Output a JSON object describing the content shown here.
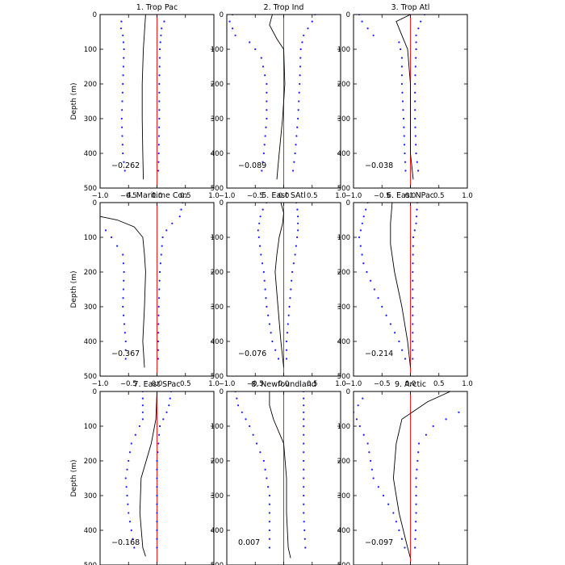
{
  "chart_data": {
    "type": "line",
    "layout": "3x3 grid of vertical profile panels",
    "ylabel": "Depth (m)",
    "xlim": [
      -1.0,
      1.0
    ],
    "ylim": [
      500,
      0
    ],
    "xticks": [
      -1.0,
      -0.5,
      0.0,
      0.5,
      1.0
    ],
    "xtick_labels": [
      "−1.0",
      "−0.5",
      "0.0",
      "0.5",
      "1.0"
    ],
    "yticks": [
      0,
      100,
      200,
      300,
      400,
      500
    ],
    "ytick_labels": [
      "0",
      "100",
      "200",
      "300",
      "400",
      "500"
    ],
    "colors": {
      "mean": "#000000",
      "envelope": "#1a1aff",
      "zero": "#ff0000"
    },
    "depths": [
      0,
      20,
      40,
      60,
      80,
      100,
      125,
      150,
      175,
      200,
      225,
      250,
      275,
      300,
      325,
      350,
      375,
      400,
      425,
      450,
      475,
      500
    ],
    "panels": [
      {
        "title": "1. Trop Pac",
        "correlation": "−0.262",
        "mean": [
          [
            -0.2,
            0
          ],
          [
            -0.22,
            50
          ],
          [
            -0.24,
            100
          ],
          [
            -0.26,
            200
          ],
          [
            -0.26,
            300
          ],
          [
            -0.25,
            400
          ],
          [
            -0.24,
            475
          ]
        ],
        "lower": [
          [
            -0.6,
            10
          ],
          [
            -0.65,
            30
          ],
          [
            -0.6,
            60
          ],
          [
            -0.58,
            100
          ],
          [
            -0.6,
            200
          ],
          [
            -0.62,
            300
          ],
          [
            -0.6,
            400
          ],
          [
            -0.55,
            470
          ]
        ],
        "upper": [
          [
            0.15,
            10
          ],
          [
            0.08,
            40
          ],
          [
            0.05,
            100
          ],
          [
            0.04,
            200
          ],
          [
            0.04,
            300
          ],
          [
            0.03,
            400
          ],
          [
            0.02,
            470
          ]
        ]
      },
      {
        "title": "2. Trop Ind",
        "correlation": "−0.089",
        "mean": [
          [
            -0.2,
            0
          ],
          [
            -0.25,
            30
          ],
          [
            -0.12,
            70
          ],
          [
            0.0,
            100
          ],
          [
            0.02,
            200
          ],
          [
            -0.02,
            300
          ],
          [
            -0.08,
            400
          ],
          [
            -0.12,
            475
          ]
        ],
        "lower": [
          [
            -0.9,
            0
          ],
          [
            -0.95,
            20
          ],
          [
            -0.85,
            60
          ],
          [
            -0.6,
            80
          ],
          [
            -0.4,
            120
          ],
          [
            -0.3,
            200
          ],
          [
            -0.3,
            300
          ],
          [
            -0.35,
            400
          ],
          [
            -0.4,
            470
          ]
        ],
        "upper": [
          [
            0.55,
            0
          ],
          [
            0.5,
            20
          ],
          [
            0.35,
            60
          ],
          [
            0.3,
            100
          ],
          [
            0.28,
            200
          ],
          [
            0.25,
            300
          ],
          [
            0.2,
            400
          ],
          [
            0.15,
            470
          ]
        ]
      },
      {
        "title": "3. Trop Atl",
        "correlation": "−0.038",
        "mean": [
          [
            0.0,
            0
          ],
          [
            -0.25,
            20
          ],
          [
            -0.15,
            60
          ],
          [
            -0.05,
            100
          ],
          [
            0.0,
            200
          ],
          [
            0.0,
            300
          ],
          [
            0.0,
            400
          ],
          [
            0.05,
            475
          ]
        ],
        "lower": [
          [
            -0.9,
            0
          ],
          [
            -0.85,
            20
          ],
          [
            -0.65,
            60
          ],
          [
            -0.2,
            80
          ],
          [
            -0.15,
            120
          ],
          [
            -0.15,
            200
          ],
          [
            -0.12,
            300
          ],
          [
            -0.1,
            400
          ],
          [
            -0.08,
            470
          ]
        ],
        "upper": [
          [
            0.25,
            0
          ],
          [
            0.18,
            20
          ],
          [
            0.1,
            60
          ],
          [
            0.1,
            100
          ],
          [
            0.08,
            200
          ],
          [
            0.08,
            300
          ],
          [
            0.1,
            400
          ],
          [
            0.15,
            470
          ]
        ]
      },
      {
        "title": "4. Maritime Con",
        "correlation": "−0.367",
        "mean": [
          [
            -1.0,
            40
          ],
          [
            -0.7,
            50
          ],
          [
            -0.4,
            70
          ],
          [
            -0.25,
            100
          ],
          [
            -0.22,
            150
          ],
          [
            -0.2,
            200
          ],
          [
            -0.22,
            300
          ],
          [
            -0.25,
            400
          ],
          [
            -0.22,
            475
          ]
        ],
        "lower": [
          [
            -0.95,
            70
          ],
          [
            -0.8,
            100
          ],
          [
            -0.6,
            150
          ],
          [
            -0.58,
            200
          ],
          [
            -0.6,
            300
          ],
          [
            -0.55,
            400
          ],
          [
            -0.55,
            470
          ]
        ],
        "upper": [
          [
            0.45,
            0
          ],
          [
            0.4,
            40
          ],
          [
            0.2,
            70
          ],
          [
            0.1,
            100
          ],
          [
            0.05,
            200
          ],
          [
            0.03,
            300
          ],
          [
            0.02,
            400
          ],
          [
            0.02,
            470
          ]
        ]
      },
      {
        "title": "5. East SAtl",
        "correlation": "−0.076",
        "mean": [
          [
            -0.05,
            0
          ],
          [
            0.0,
            30
          ],
          [
            -0.02,
            60
          ],
          [
            -0.08,
            100
          ],
          [
            -0.12,
            150
          ],
          [
            -0.15,
            200
          ],
          [
            -0.1,
            300
          ],
          [
            -0.05,
            400
          ],
          [
            0.0,
            475
          ]
        ],
        "lower": [
          [
            -0.3,
            0
          ],
          [
            -0.4,
            30
          ],
          [
            -0.45,
            80
          ],
          [
            -0.4,
            150
          ],
          [
            -0.35,
            200
          ],
          [
            -0.3,
            300
          ],
          [
            -0.2,
            400
          ],
          [
            -0.05,
            470
          ]
        ],
        "upper": [
          [
            0.22,
            0
          ],
          [
            0.25,
            30
          ],
          [
            0.25,
            80
          ],
          [
            0.2,
            150
          ],
          [
            0.15,
            200
          ],
          [
            0.1,
            300
          ],
          [
            0.05,
            400
          ],
          [
            0.05,
            470
          ]
        ]
      },
      {
        "title": "6. East NPac",
        "correlation": "−0.214",
        "mean": [
          [
            -0.32,
            0
          ],
          [
            -0.35,
            60
          ],
          [
            -0.35,
            120
          ],
          [
            -0.28,
            200
          ],
          [
            -0.15,
            300
          ],
          [
            -0.05,
            400
          ],
          [
            0.0,
            475
          ]
        ],
        "lower": [
          [
            -0.75,
            0
          ],
          [
            -0.82,
            40
          ],
          [
            -0.9,
            100
          ],
          [
            -0.82,
            180
          ],
          [
            -0.5,
            300
          ],
          [
            -0.2,
            400
          ],
          [
            -0.05,
            470
          ]
        ],
        "upper": [
          [
            0.12,
            0
          ],
          [
            0.1,
            60
          ],
          [
            0.05,
            100
          ],
          [
            0.04,
            200
          ],
          [
            0.04,
            300
          ],
          [
            0.04,
            400
          ],
          [
            0.04,
            470
          ]
        ]
      },
      {
        "title": "7. East SPac",
        "correlation": "−0.168",
        "mean": [
          [
            0.0,
            0
          ],
          [
            -0.02,
            80
          ],
          [
            -0.1,
            150
          ],
          [
            -0.28,
            250
          ],
          [
            -0.3,
            350
          ],
          [
            -0.25,
            450
          ],
          [
            -0.2,
            475
          ]
        ],
        "lower": [
          [
            -0.25,
            0
          ],
          [
            -0.25,
            80
          ],
          [
            -0.45,
            150
          ],
          [
            -0.55,
            250
          ],
          [
            -0.5,
            350
          ],
          [
            -0.4,
            450
          ],
          [
            -0.3,
            470
          ]
        ],
        "upper": [
          [
            0.25,
            0
          ],
          [
            0.2,
            50
          ],
          [
            0.05,
            100
          ],
          [
            0.0,
            200
          ],
          [
            0.0,
            300
          ],
          [
            0.0,
            400
          ],
          [
            0.0,
            470
          ]
        ]
      },
      {
        "title": "8. Newfoundland",
        "correlation": "0.007",
        "mean": [
          [
            -0.25,
            0
          ],
          [
            -0.25,
            40
          ],
          [
            -0.18,
            80
          ],
          [
            0.0,
            150
          ],
          [
            0.05,
            250
          ],
          [
            0.05,
            350
          ],
          [
            0.08,
            450
          ],
          [
            0.12,
            480
          ]
        ],
        "lower": [
          [
            -0.85,
            0
          ],
          [
            -0.8,
            40
          ],
          [
            -0.6,
            100
          ],
          [
            -0.35,
            200
          ],
          [
            -0.25,
            300
          ],
          [
            -0.25,
            400
          ],
          [
            -0.25,
            470
          ]
        ],
        "upper": [
          [
            0.35,
            0
          ],
          [
            0.35,
            50
          ],
          [
            0.35,
            150
          ],
          [
            0.35,
            250
          ],
          [
            0.35,
            350
          ],
          [
            0.38,
            450
          ],
          [
            0.38,
            470
          ]
        ]
      },
      {
        "title": "9. Arctic",
        "correlation": "−0.097",
        "mean": [
          [
            0.7,
            0
          ],
          [
            0.3,
            30
          ],
          [
            -0.15,
            80
          ],
          [
            -0.25,
            150
          ],
          [
            -0.3,
            250
          ],
          [
            -0.2,
            350
          ],
          [
            -0.05,
            450
          ],
          [
            0.0,
            480
          ]
        ],
        "lower": [
          [
            -0.8,
            10
          ],
          [
            -1.0,
            60
          ],
          [
            -0.75,
            150
          ],
          [
            -0.65,
            250
          ],
          [
            -0.3,
            350
          ],
          [
            -0.1,
            450
          ],
          [
            -0.05,
            470
          ]
        ],
        "upper": [
          [
            0.85,
            60
          ],
          [
            0.4,
            100
          ],
          [
            0.15,
            150
          ],
          [
            0.1,
            250
          ],
          [
            0.1,
            350
          ],
          [
            0.08,
            450
          ],
          [
            0.05,
            470
          ]
        ]
      }
    ]
  }
}
